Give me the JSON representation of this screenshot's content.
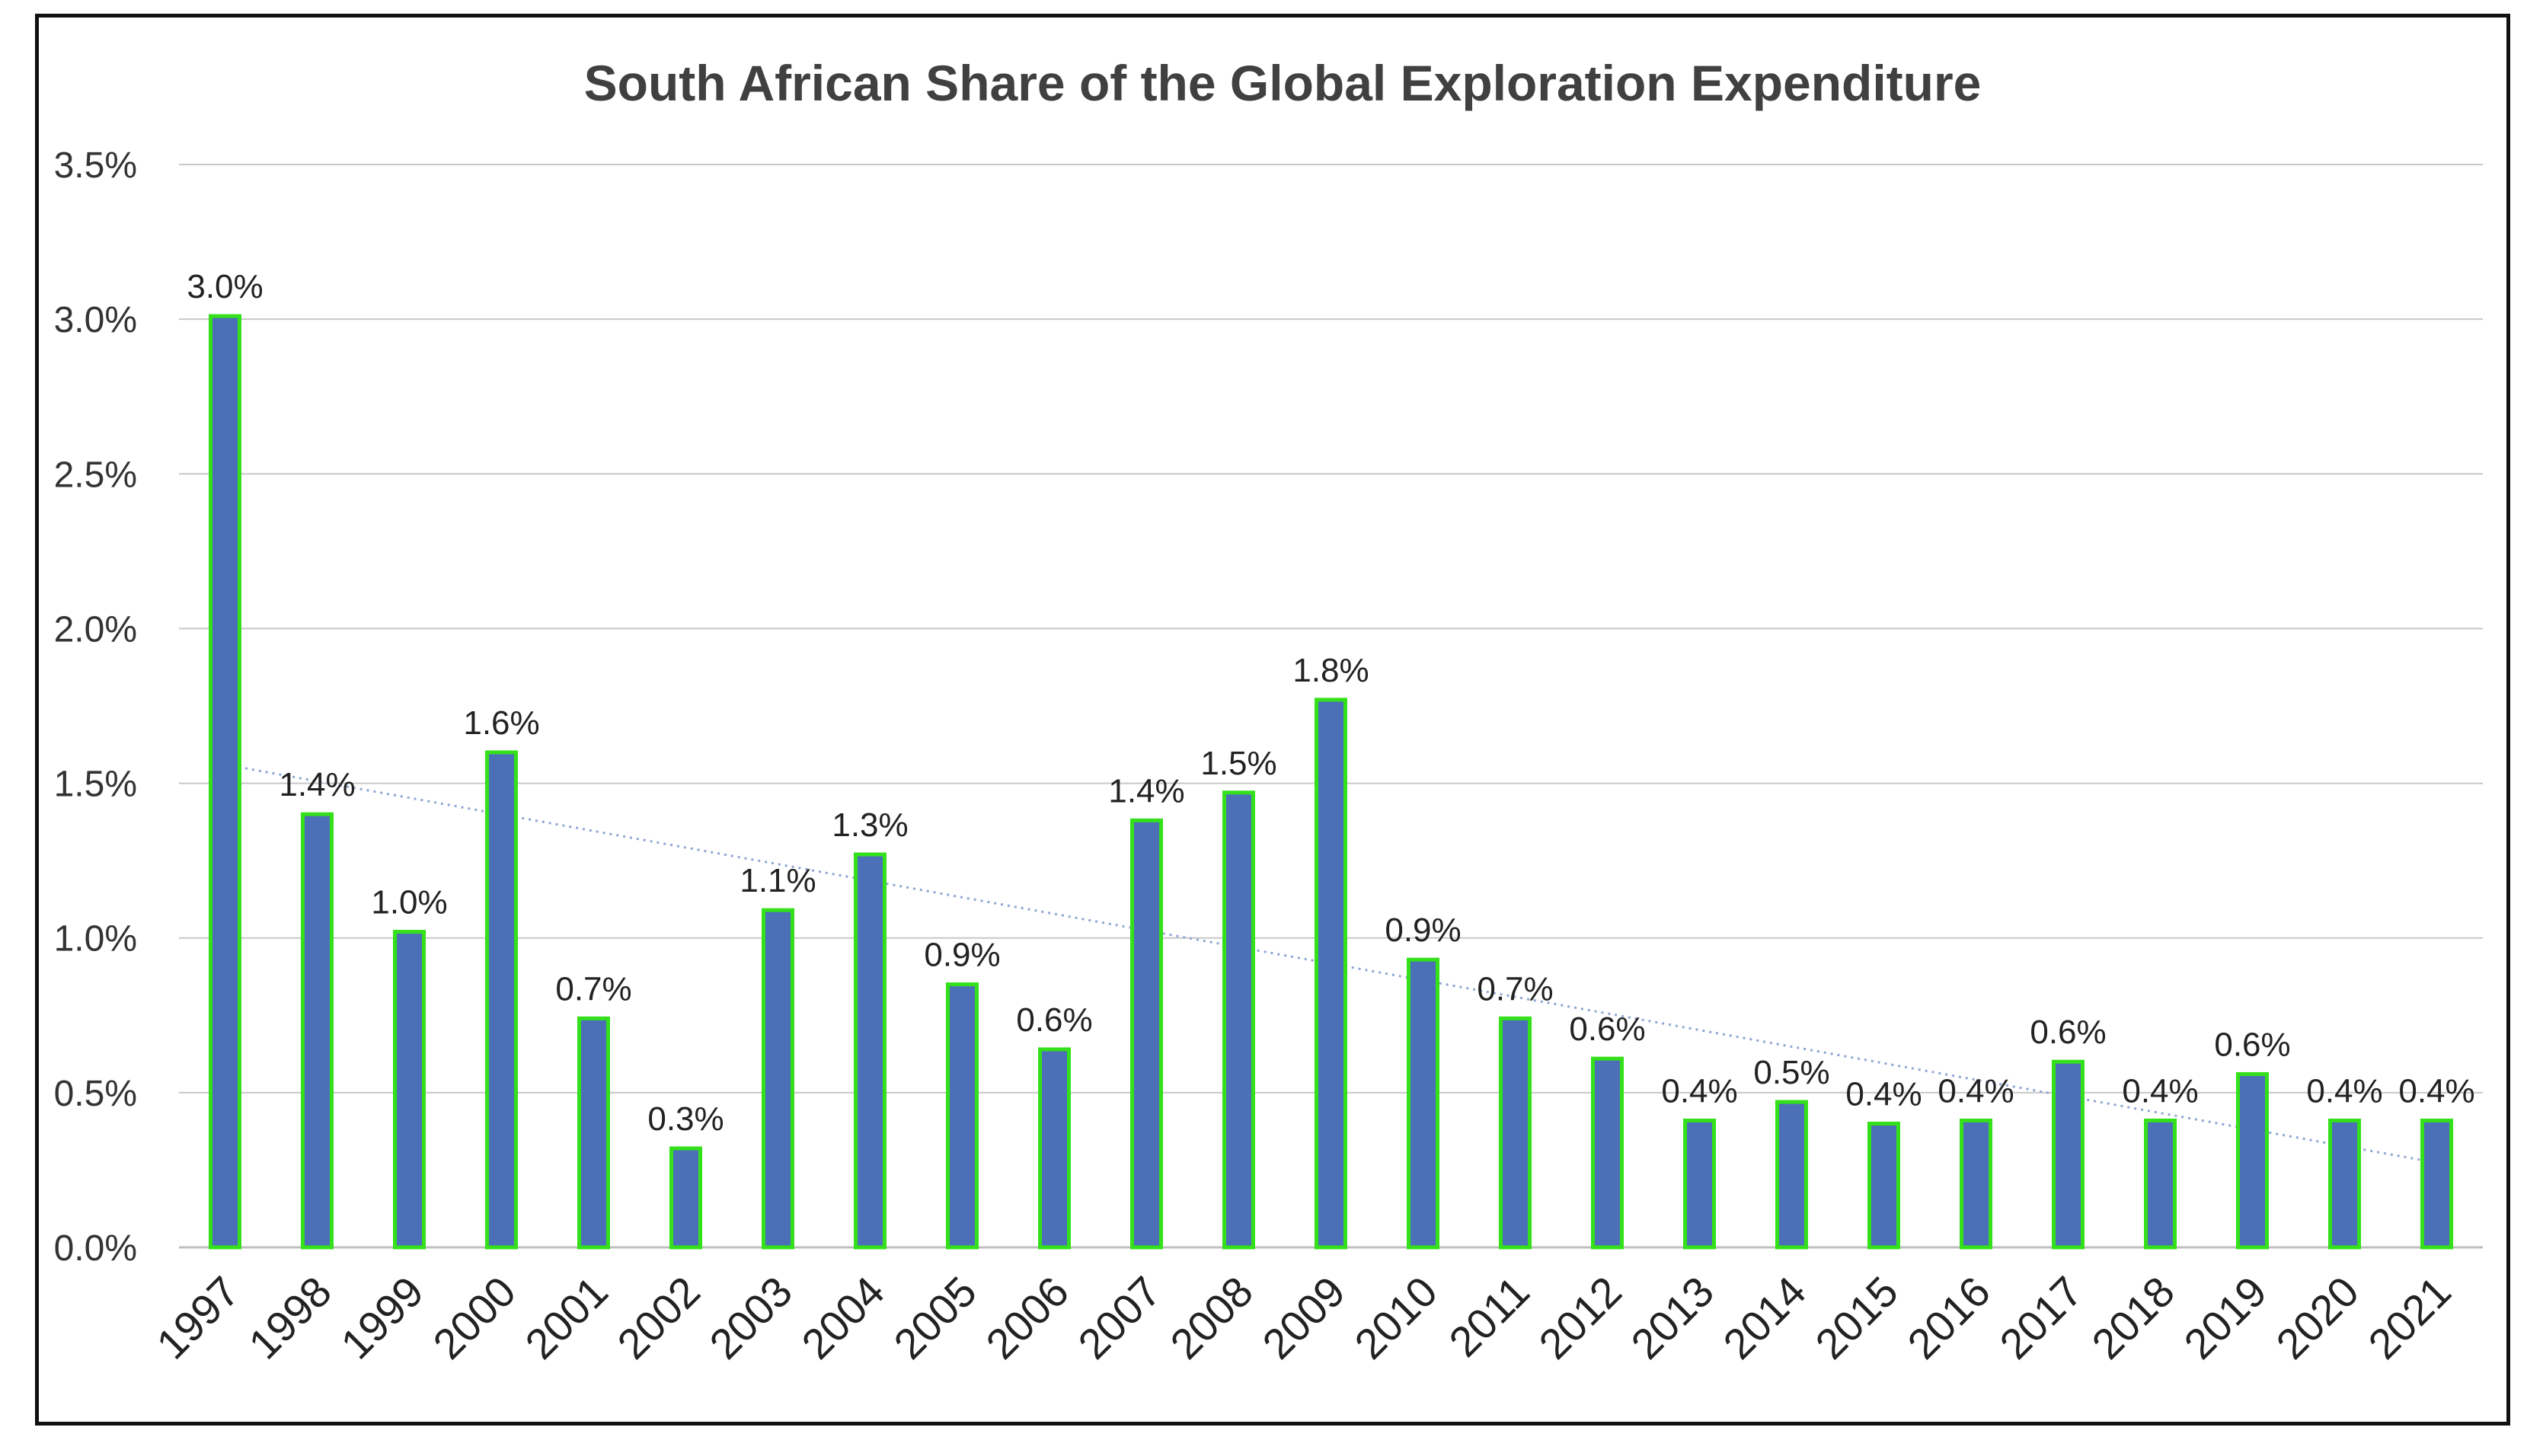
{
  "chart_data": {
    "type": "bar",
    "title": "South African Share of the Global Exploration Expenditure",
    "xlabel": "",
    "ylabel": "",
    "ylim": [
      0,
      3.5
    ],
    "yticks": [
      "0.0%",
      "0.5%",
      "1.0%",
      "1.5%",
      "2.0%",
      "2.5%",
      "3.0%",
      "3.5%"
    ],
    "ytick_values": [
      0,
      0.5,
      1.0,
      1.5,
      2.0,
      2.5,
      3.0,
      3.5
    ],
    "grid": true,
    "legend": "none",
    "trendline": {
      "type": "linear",
      "style": "dotted"
    },
    "categories": [
      "1997",
      "1998",
      "1999",
      "2000",
      "2001",
      "2002",
      "2003",
      "2004",
      "2005",
      "2006",
      "2007",
      "2008",
      "2009",
      "2010",
      "2011",
      "2012",
      "2013",
      "2014",
      "2015",
      "2016",
      "2017",
      "2018",
      "2019",
      "2020",
      "2021"
    ],
    "values": [
      3.01,
      1.4,
      1.02,
      1.6,
      0.74,
      0.32,
      1.09,
      1.27,
      0.85,
      0.64,
      1.38,
      1.47,
      1.77,
      0.93,
      0.74,
      0.61,
      0.41,
      0.47,
      0.4,
      0.41,
      0.6,
      0.41,
      0.56,
      0.41,
      0.41
    ],
    "data_labels": [
      "3.0%",
      "1.4%",
      "1.0%",
      "1.6%",
      "0.7%",
      "0.3%",
      "1.1%",
      "1.3%",
      "0.9%",
      "0.6%",
      "1.4%",
      "1.5%",
      "1.8%",
      "0.9%",
      "0.7%",
      "0.6%",
      "0.4%",
      "0.5%",
      "0.4%",
      "0.4%",
      "0.6%",
      "0.4%",
      "0.6%",
      "0.4%",
      "0.4%"
    ],
    "colors": {
      "bar_fill": "#4b70b8",
      "bar_stroke": "#33e01a",
      "grid": "#c8c8c8",
      "axis": "#bfbfbf",
      "trend": "#8fa6d4"
    }
  }
}
